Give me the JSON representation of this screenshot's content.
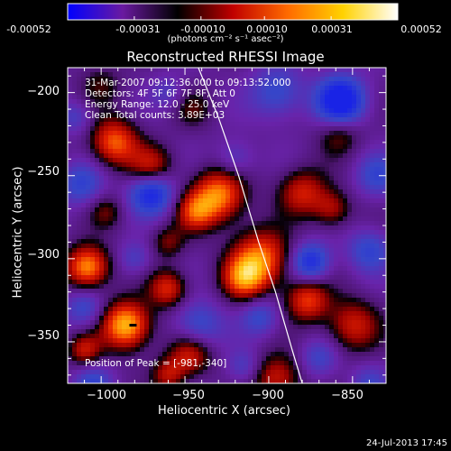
{
  "colorbar": {
    "ticks": [
      "-0.00052",
      "-0.00031",
      "-0.00010",
      "0.00010",
      "0.00031",
      "0.00052"
    ],
    "tick_values": [
      -0.00052,
      -0.00031,
      -0.0001,
      0.0001,
      0.00031,
      0.00052
    ],
    "units": "(photons cm⁻² s⁻¹ asec⁻²)",
    "colors": [
      "#0000ff",
      "#6a1aa0",
      "#000000",
      "#c00000",
      "#ff6a00",
      "#ffd200",
      "#ffffff"
    ]
  },
  "chart_data": {
    "type": "heatmap",
    "title": "Reconstructed RHESSI Image",
    "xlabel": "Heliocentric X (arcsec)",
    "ylabel": "Heliocentric Y (arcsec)",
    "xlim": [
      -1020,
      -830
    ],
    "ylim": [
      -375,
      -185
    ],
    "xticks": [
      -1000,
      -950,
      -900,
      -850
    ],
    "xtick_labels": [
      "−1000",
      "−950",
      "−900",
      "−850"
    ],
    "yticks": [
      -200,
      -250,
      -300,
      -350
    ],
    "ytick_labels": [
      "−200",
      "−250",
      "−300",
      "−350"
    ],
    "limb_curve": [
      [
        -942,
        -185
      ],
      [
        -930,
        -215
      ],
      [
        -918,
        -250
      ],
      [
        -906,
        -290
      ],
      [
        -896,
        -320
      ],
      [
        -886,
        -355
      ],
      [
        -880,
        -375
      ]
    ],
    "peak": [
      -981,
      -340
    ],
    "blobs": [
      {
        "x": -985,
        "y": -340,
        "v": 1.0,
        "s": 10
      },
      {
        "x": -992,
        "y": -230,
        "v": 0.75,
        "s": 10
      },
      {
        "x": -970,
        "y": -245,
        "v": 0.55,
        "s": 9
      },
      {
        "x": -930,
        "y": -262,
        "v": 0.85,
        "s": 11
      },
      {
        "x": -944,
        "y": -272,
        "v": 0.55,
        "s": 8
      },
      {
        "x": -905,
        "y": -300,
        "v": 0.8,
        "s": 12
      },
      {
        "x": -915,
        "y": -312,
        "v": 0.65,
        "s": 9
      },
      {
        "x": -877,
        "y": -325,
        "v": 0.65,
        "s": 9
      },
      {
        "x": -1008,
        "y": -305,
        "v": 0.9,
        "s": 9
      },
      {
        "x": -960,
        "y": -318,
        "v": 0.6,
        "s": 8
      },
      {
        "x": -850,
        "y": -340,
        "v": 0.55,
        "s": 11
      },
      {
        "x": -880,
        "y": -260,
        "v": 0.55,
        "s": 10
      },
      {
        "x": -862,
        "y": -270,
        "v": 0.45,
        "s": 8
      },
      {
        "x": -858,
        "y": -225,
        "v": 0.35,
        "s": 9
      },
      {
        "x": -947,
        "y": -358,
        "v": 0.55,
        "s": 9
      },
      {
        "x": -895,
        "y": -372,
        "v": 0.55,
        "s": 10
      },
      {
        "x": -1010,
        "y": -355,
        "v": 0.5,
        "s": 7
      },
      {
        "x": -960,
        "y": -370,
        "v": 0.45,
        "s": 7
      },
      {
        "x": -1000,
        "y": -195,
        "v": 0.25,
        "s": 9
      },
      {
        "x": -945,
        "y": -210,
        "v": 0.25,
        "s": 8
      },
      {
        "x": -960,
        "y": -290,
        "v": 0.35,
        "s": 7
      },
      {
        "x": -997,
        "y": -272,
        "v": 0.3,
        "s": 7
      },
      {
        "x": -857,
        "y": -205,
        "v": -1.0,
        "s": 10
      },
      {
        "x": -970,
        "y": -260,
        "v": -0.8,
        "s": 9
      },
      {
        "x": -875,
        "y": -302,
        "v": -0.7,
        "s": 8
      },
      {
        "x": -942,
        "y": -340,
        "v": -0.45,
        "s": 10
      },
      {
        "x": -1012,
        "y": -255,
        "v": -0.45,
        "s": 9
      },
      {
        "x": -895,
        "y": -200,
        "v": -0.45,
        "s": 11
      },
      {
        "x": -905,
        "y": -335,
        "v": -0.4,
        "s": 8
      },
      {
        "x": -1010,
        "y": -330,
        "v": -0.4,
        "s": 8
      },
      {
        "x": -840,
        "y": -295,
        "v": -0.45,
        "s": 9
      },
      {
        "x": -920,
        "y": -240,
        "v": -0.3,
        "s": 8
      },
      {
        "x": -1005,
        "y": -375,
        "v": -0.4,
        "s": 8
      },
      {
        "x": -835,
        "y": -250,
        "v": -0.4,
        "s": 9
      },
      {
        "x": -870,
        "y": -360,
        "v": -0.35,
        "s": 8
      },
      {
        "x": -980,
        "y": -300,
        "v": -0.3,
        "s": 7
      },
      {
        "x": -915,
        "y": -365,
        "v": -0.3,
        "s": 7
      },
      {
        "x": -960,
        "y": -200,
        "v": -0.25,
        "s": 7
      },
      {
        "x": -840,
        "y": -375,
        "v": -0.3,
        "s": 8
      },
      {
        "x": -1015,
        "y": -215,
        "v": -0.3,
        "s": 7
      }
    ]
  },
  "info": {
    "line1": "31-Mar-2007 09:12:36.000 to 09:13:52.000",
    "line2": "Detectors: 4F 5F 6F 7F 8F, Att 0",
    "line3": "Energy Range: 12.0 - 25.0 keV",
    "line4": "Clean     Total counts: 3.89E+03"
  },
  "peak_label": "Position of Peak = [-981,-340]",
  "footer": "24-Jul-2013 17:45"
}
